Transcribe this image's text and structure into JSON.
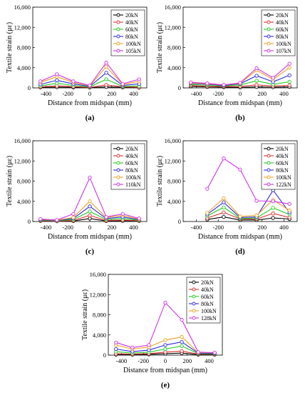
{
  "chart_data": [
    {
      "type": "line",
      "panel_label": "(a)",
      "xlabel": "Distance from midspan (mm)",
      "ylabel": "Textile strain (με)",
      "x": [
        -450,
        -300,
        -150,
        0,
        150,
        300,
        450
      ],
      "xticks": [
        "-400",
        "-200",
        "0",
        "200",
        "400"
      ],
      "yticks": [
        "0",
        "4,000",
        "8,000",
        "12,000",
        "16,000"
      ],
      "xlim": [
        -520,
        520
      ],
      "ylim": [
        0,
        16000
      ],
      "legend": "top-right",
      "series": [
        {
          "name": "20kN",
          "color": "#000000",
          "values": [
            100,
            150,
            100,
            50,
            200,
            100,
            50
          ]
        },
        {
          "name": "40kN",
          "color": "#e03030",
          "values": [
            200,
            400,
            250,
            100,
            600,
            200,
            150
          ]
        },
        {
          "name": "60kN",
          "color": "#22cc22",
          "values": [
            400,
            900,
            500,
            200,
            1700,
            300,
            400
          ]
        },
        {
          "name": "80kN",
          "color": "#2b2bdf",
          "values": [
            700,
            1500,
            800,
            300,
            3000,
            500,
            800
          ]
        },
        {
          "name": "100kN",
          "color": "#f0a020",
          "values": [
            1100,
            2200,
            1100,
            400,
            4200,
            700,
            1300
          ]
        },
        {
          "name": "105kN",
          "color": "#d033e8",
          "values": [
            1300,
            2700,
            1300,
            500,
            5000,
            800,
            1700
          ]
        }
      ]
    },
    {
      "type": "line",
      "panel_label": "(b)",
      "xlabel": "Distance from midspan (mm)",
      "ylabel": "Textile strain (με)",
      "x": [
        -450,
        -300,
        -150,
        0,
        150,
        300,
        450
      ],
      "xticks": [
        "-400",
        "-200",
        "0",
        "200",
        "400"
      ],
      "yticks": [
        "0",
        "4,000",
        "8,000",
        "12,000",
        "16,000"
      ],
      "xlim": [
        -520,
        520
      ],
      "ylim": [
        0,
        16000
      ],
      "legend": "top-right",
      "series": [
        {
          "name": "20kN",
          "color": "#000000",
          "values": [
            300,
            200,
            150,
            100,
            200,
            150,
            200
          ]
        },
        {
          "name": "40kN",
          "color": "#e03030",
          "values": [
            500,
            300,
            250,
            300,
            600,
            400,
            500
          ]
        },
        {
          "name": "60kN",
          "color": "#22cc22",
          "values": [
            700,
            500,
            400,
            600,
            1400,
            700,
            1200
          ]
        },
        {
          "name": "80kN",
          "color": "#2b2bdf",
          "values": [
            900,
            700,
            500,
            800,
            2400,
            1200,
            2500
          ]
        },
        {
          "name": "100kN",
          "color": "#f0a020",
          "values": [
            1000,
            800,
            600,
            900,
            3500,
            1700,
            4000
          ]
        },
        {
          "name": "107kN",
          "color": "#d033e8",
          "values": [
            1100,
            900,
            600,
            1000,
            3900,
            2000,
            4800
          ]
        }
      ]
    },
    {
      "type": "line",
      "panel_label": "(c)",
      "xlabel": "Distance from midspan (mm)",
      "ylabel": "Textile strain (με)",
      "x": [
        -450,
        -300,
        -150,
        0,
        150,
        300,
        450
      ],
      "xticks": [
        "-400",
        "-200",
        "0",
        "200",
        "400"
      ],
      "yticks": [
        "0",
        "4,000",
        "8,000",
        "12,000",
        "16,000"
      ],
      "xlim": [
        -520,
        520
      ],
      "ylim": [
        0,
        16000
      ],
      "legend": "top-right",
      "series": [
        {
          "name": "20kN",
          "color": "#000000",
          "values": [
            100,
            50,
            100,
            600,
            100,
            150,
            100
          ]
        },
        {
          "name": "40kN",
          "color": "#e03030",
          "values": [
            150,
            100,
            200,
            1200,
            200,
            300,
            150
          ]
        },
        {
          "name": "60kN",
          "color": "#22cc22",
          "values": [
            250,
            150,
            400,
            2000,
            400,
            600,
            250
          ]
        },
        {
          "name": "80kN",
          "color": "#2b2bdf",
          "values": [
            350,
            200,
            600,
            3000,
            600,
            900,
            350
          ]
        },
        {
          "name": "100kN",
          "color": "#f0a020",
          "values": [
            450,
            250,
            800,
            4000,
            800,
            1200,
            450
          ]
        },
        {
          "name": "110kN",
          "color": "#d033e8",
          "values": [
            500,
            300,
            1500,
            8700,
            900,
            1500,
            600
          ]
        }
      ]
    },
    {
      "type": "line",
      "panel_label": "(d)",
      "xlabel": "Distance from midspan (mm)",
      "ylabel": "Textile strain (με)",
      "x": [
        -300,
        -150,
        0,
        150,
        300,
        450
      ],
      "xticks": [
        "-400",
        "-200",
        "0",
        "200",
        "400"
      ],
      "yticks": [
        "0",
        "4,000",
        "8,000",
        "12,000",
        "16,000"
      ],
      "xlim": [
        -520,
        520
      ],
      "ylim": [
        0,
        16000
      ],
      "legend": "top-right",
      "series": [
        {
          "name": "20kN",
          "color": "#000000",
          "values": [
            400,
            900,
            300,
            300,
            700,
            500
          ]
        },
        {
          "name": "40kN",
          "color": "#e03030",
          "values": [
            700,
            1800,
            500,
            500,
            1600,
            800
          ]
        },
        {
          "name": "60kN",
          "color": "#22cc22",
          "values": [
            1100,
            2800,
            600,
            700,
            2700,
            1400
          ]
        },
        {
          "name": "80kN",
          "color": "#2b2bdf",
          "values": [
            1400,
            3800,
            800,
            900,
            6200,
            1800
          ]
        },
        {
          "name": "100kN",
          "color": "#f0a020",
          "values": [
            1700,
            4600,
            1000,
            1200,
            4300,
            2200
          ]
        },
        {
          "name": "122kN",
          "color": "#d033e8",
          "values": [
            6500,
            12500,
            10300,
            4100,
            4000,
            3500
          ]
        }
      ]
    },
    {
      "type": "line",
      "panel_label": "(e)",
      "xlabel": "Distance from midspan (mm)",
      "ylabel": "Textile strain (με)",
      "x": [
        -450,
        -300,
        -150,
        0,
        150,
        300,
        450
      ],
      "xticks": [
        "-400",
        "-200",
        "0",
        "200",
        "400"
      ],
      "yticks": [
        "0",
        "4,000",
        "8,000",
        "12,000",
        "16,000"
      ],
      "xlim": [
        -520,
        520
      ],
      "ylim": [
        0,
        16000
      ],
      "legend": "top-right",
      "series": [
        {
          "name": "20kN",
          "color": "#000000",
          "values": [
            100,
            100,
            150,
            300,
            400,
            100,
            100
          ]
        },
        {
          "name": "40kN",
          "color": "#e03030",
          "values": [
            300,
            200,
            300,
            600,
            800,
            200,
            200
          ]
        },
        {
          "name": "60kN",
          "color": "#22cc22",
          "values": [
            700,
            400,
            600,
            1200,
            1800,
            300,
            300
          ]
        },
        {
          "name": "80kN",
          "color": "#2b2bdf",
          "values": [
            1200,
            700,
            1000,
            2000,
            2600,
            400,
            400
          ]
        },
        {
          "name": "100kN",
          "color": "#f0a020",
          "values": [
            2000,
            1200,
            1600,
            3000,
            3600,
            500,
            500
          ]
        },
        {
          "name": "128kN",
          "color": "#d033e8",
          "values": [
            2500,
            1500,
            2000,
            10400,
            7000,
            600,
            500
          ]
        }
      ]
    }
  ]
}
